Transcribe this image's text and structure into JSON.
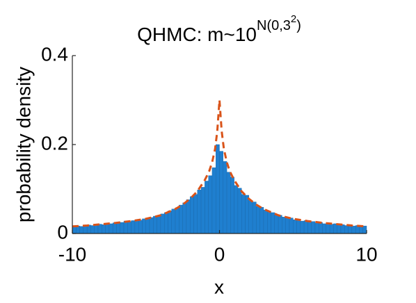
{
  "chart_data": {
    "type": "histogram",
    "title_parts": [
      {
        "text": "QHMC: m~10",
        "level": 0
      },
      {
        "text": "N(0,3",
        "level": 1
      },
      {
        "text": "2",
        "level": 2
      },
      {
        "text": ")",
        "level": 1
      }
    ],
    "x_label": "x",
    "y_label": "probability density",
    "xlim": [
      -10,
      10
    ],
    "ylim": [
      0,
      0.4
    ],
    "xticks": [
      -10,
      0,
      10
    ],
    "yticks": [
      0,
      0.2,
      0.4
    ],
    "color": "#1f7fcf",
    "bins": [
      -10,
      -9.75,
      -9.5,
      -9.25,
      -9,
      -8.75,
      -8.5,
      -8.25,
      -8,
      -7.75,
      -7.5,
      -7.25,
      -7,
      -6.75,
      -6.5,
      -6.25,
      -6,
      -5.75,
      -5.5,
      -5.25,
      -5,
      -4.75,
      -4.5,
      -4.25,
      -4,
      -3.75,
      -3.5,
      -3.25,
      -3,
      -2.75,
      -2.5,
      -2.25,
      -2,
      -1.75,
      -1.5,
      -1.25,
      -1,
      -0.75,
      -0.5,
      -0.25,
      0,
      0.25,
      0.5,
      0.75,
      1,
      1.25,
      1.5,
      1.75,
      2,
      2.25,
      2.5,
      2.75,
      3,
      3.25,
      3.5,
      3.75,
      4,
      4.25,
      4.5,
      4.75,
      5,
      5.25,
      5.5,
      5.75,
      6,
      6.25,
      6.5,
      6.75,
      7,
      7.25,
      7.5,
      7.75,
      8,
      8.25,
      8.5,
      8.75,
      9,
      9.25,
      9.5,
      9.75,
      10
    ],
    "values": [
      0.015,
      0.017,
      0.016,
      0.018,
      0.019,
      0.018,
      0.02,
      0.021,
      0.02,
      0.023,
      0.022,
      0.024,
      0.026,
      0.025,
      0.028,
      0.027,
      0.029,
      0.031,
      0.03,
      0.033,
      0.035,
      0.036,
      0.039,
      0.041,
      0.044,
      0.047,
      0.051,
      0.055,
      0.058,
      0.064,
      0.069,
      0.076,
      0.083,
      0.088,
      0.098,
      0.104,
      0.118,
      0.13,
      0.148,
      0.2,
      0.185,
      0.162,
      0.138,
      0.127,
      0.108,
      0.102,
      0.088,
      0.086,
      0.074,
      0.071,
      0.061,
      0.059,
      0.053,
      0.05,
      0.047,
      0.042,
      0.041,
      0.037,
      0.036,
      0.035,
      0.031,
      0.032,
      0.028,
      0.029,
      0.026,
      0.027,
      0.024,
      0.025,
      0.022,
      0.023,
      0.021,
      0.022,
      0.019,
      0.02,
      0.018,
      0.019,
      0.017,
      0.018,
      0.016,
      0.017
    ],
    "line": {
      "color": "#d95319",
      "dashed": true,
      "x": [
        -10,
        -9,
        -8,
        -7,
        -6,
        -5,
        -4,
        -3,
        -2.5,
        -2,
        -1.5,
        -1,
        -0.7,
        -0.5,
        -0.3,
        -0.15,
        0,
        0.15,
        0.3,
        0.5,
        0.7,
        1,
        1.5,
        2,
        2.5,
        3,
        4,
        5,
        6,
        7,
        8,
        9,
        10
      ],
      "values": [
        0.016,
        0.018,
        0.021,
        0.024,
        0.028,
        0.033,
        0.041,
        0.055,
        0.065,
        0.078,
        0.095,
        0.12,
        0.14,
        0.16,
        0.19,
        0.23,
        0.3,
        0.23,
        0.19,
        0.16,
        0.14,
        0.12,
        0.095,
        0.078,
        0.065,
        0.055,
        0.041,
        0.033,
        0.028,
        0.024,
        0.021,
        0.018,
        0.016
      ]
    }
  }
}
